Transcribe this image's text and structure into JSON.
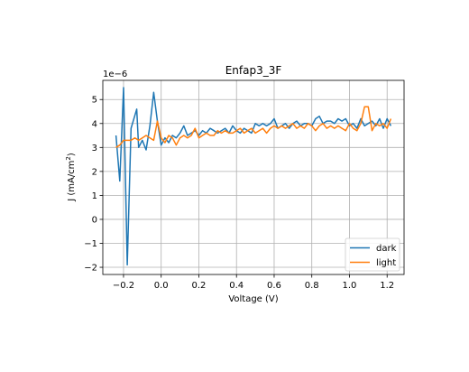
{
  "chart_data": {
    "type": "line",
    "title": "Enfap3_3F",
    "xlabel": "Voltage (V)",
    "ylabel_main": "J (mA/cm",
    "ylabel_sup": "2",
    "ylabel_close": ")",
    "y_offset_label": "1e−6",
    "xlim": [
      -0.31,
      1.29
    ],
    "ylim": [
      -2.3,
      5.8
    ],
    "grid": true,
    "legend_position": "lower right",
    "xticks": [
      -0.2,
      0.0,
      0.2,
      0.4,
      0.6,
      0.8,
      1.0,
      1.2
    ],
    "xtick_labels": [
      "−0.2",
      "0.0",
      "0.2",
      "0.4",
      "0.6",
      "0.8",
      "1.0",
      "1.2"
    ],
    "yticks": [
      -2,
      -1,
      0,
      1,
      2,
      3,
      4,
      5
    ],
    "ytick_labels": [
      "−2",
      "−1",
      "0",
      "1",
      "2",
      "3",
      "4",
      "5"
    ],
    "series": [
      {
        "name": "dark",
        "color": "#1f77b4",
        "x": [
          -0.24,
          -0.22,
          -0.2,
          -0.18,
          -0.16,
          -0.13,
          -0.12,
          -0.1,
          -0.08,
          -0.06,
          -0.04,
          -0.02,
          0.0,
          0.02,
          0.04,
          0.06,
          0.08,
          0.1,
          0.12,
          0.14,
          0.16,
          0.18,
          0.2,
          0.22,
          0.24,
          0.26,
          0.28,
          0.3,
          0.32,
          0.34,
          0.36,
          0.38,
          0.4,
          0.42,
          0.44,
          0.46,
          0.48,
          0.5,
          0.52,
          0.54,
          0.56,
          0.58,
          0.6,
          0.62,
          0.64,
          0.66,
          0.68,
          0.7,
          0.72,
          0.74,
          0.76,
          0.78,
          0.8,
          0.82,
          0.84,
          0.86,
          0.88,
          0.9,
          0.92,
          0.94,
          0.96,
          0.98,
          1.0,
          1.02,
          1.04,
          1.06,
          1.08,
          1.1,
          1.12,
          1.14,
          1.16,
          1.18,
          1.2,
          1.22
        ],
        "values": [
          3.5,
          1.6,
          5.5,
          -1.9,
          3.8,
          4.6,
          3.0,
          3.3,
          2.9,
          3.9,
          5.3,
          4.1,
          3.1,
          3.4,
          3.2,
          3.5,
          3.4,
          3.6,
          3.9,
          3.5,
          3.6,
          3.7,
          3.5,
          3.7,
          3.6,
          3.8,
          3.7,
          3.6,
          3.7,
          3.8,
          3.6,
          3.9,
          3.7,
          3.6,
          3.8,
          3.7,
          3.6,
          4.0,
          3.9,
          4.0,
          3.9,
          4.0,
          4.2,
          3.8,
          3.9,
          4.0,
          3.8,
          4.0,
          4.1,
          3.9,
          4.0,
          4.0,
          3.9,
          4.2,
          4.3,
          4.0,
          4.1,
          4.1,
          4.0,
          4.2,
          4.1,
          4.2,
          3.9,
          4.0,
          3.8,
          4.2,
          3.9,
          4.0,
          4.1,
          3.9,
          4.2,
          3.8,
          4.2,
          3.9
        ],
        "label": "dark"
      },
      {
        "name": "light",
        "color": "#ff7f0e",
        "x": [
          -0.24,
          -0.22,
          -0.2,
          -0.18,
          -0.16,
          -0.14,
          -0.12,
          -0.1,
          -0.08,
          -0.06,
          -0.04,
          -0.02,
          0.0,
          0.02,
          0.04,
          0.06,
          0.08,
          0.1,
          0.12,
          0.14,
          0.16,
          0.18,
          0.2,
          0.22,
          0.24,
          0.26,
          0.28,
          0.3,
          0.32,
          0.34,
          0.36,
          0.38,
          0.4,
          0.42,
          0.44,
          0.46,
          0.48,
          0.5,
          0.52,
          0.54,
          0.56,
          0.58,
          0.6,
          0.62,
          0.64,
          0.66,
          0.68,
          0.7,
          0.72,
          0.74,
          0.76,
          0.78,
          0.8,
          0.82,
          0.84,
          0.86,
          0.88,
          0.9,
          0.92,
          0.94,
          0.96,
          0.98,
          1.0,
          1.02,
          1.04,
          1.06,
          1.08,
          1.1,
          1.12,
          1.14,
          1.16,
          1.18,
          1.2,
          1.22
        ],
        "values": [
          3.0,
          3.1,
          3.3,
          3.3,
          3.3,
          3.4,
          3.3,
          3.4,
          3.5,
          3.4,
          3.3,
          4.1,
          3.4,
          3.2,
          3.5,
          3.4,
          3.1,
          3.4,
          3.5,
          3.4,
          3.5,
          3.8,
          3.4,
          3.5,
          3.6,
          3.5,
          3.5,
          3.7,
          3.6,
          3.7,
          3.6,
          3.6,
          3.7,
          3.8,
          3.6,
          3.7,
          3.8,
          3.6,
          3.7,
          3.8,
          3.6,
          3.8,
          3.9,
          3.8,
          3.9,
          3.8,
          3.9,
          4.0,
          3.8,
          3.9,
          3.8,
          4.0,
          3.9,
          3.7,
          3.9,
          4.0,
          3.8,
          3.9,
          3.8,
          3.9,
          3.8,
          3.7,
          4.0,
          3.8,
          3.7,
          4.0,
          4.7,
          4.7,
          3.7,
          4.0,
          3.9,
          4.0,
          3.8,
          4.2
        ],
        "label": "light"
      }
    ]
  }
}
